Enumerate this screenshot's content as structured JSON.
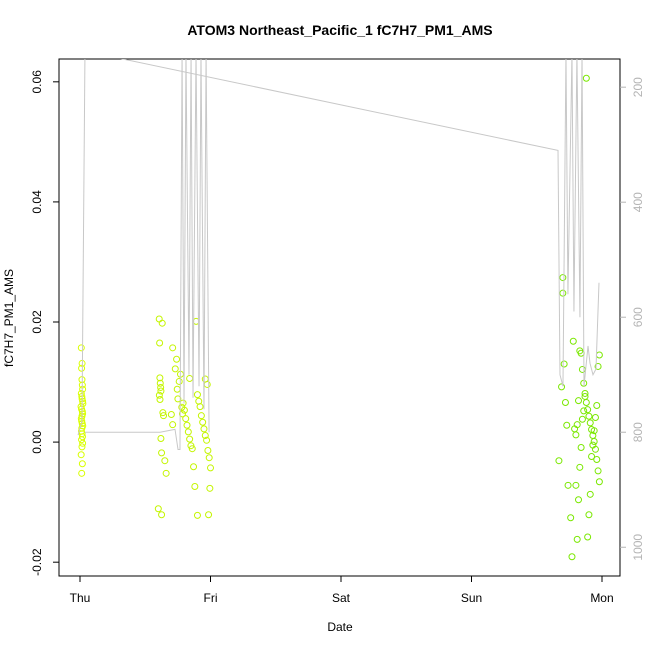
{
  "chart_data": {
    "type": "scatter",
    "title": "ATOM3 Northeast_Pacific_1 fC7H7_PM1_AMS",
    "xlabel": "Date",
    "ylabel": "fC7H7_PM1_AMS",
    "xlim": [
      -0.161,
      4.138
    ],
    "xticks": [
      {
        "value": 0,
        "label": "Thu"
      },
      {
        "value": 1,
        "label": "Fri"
      },
      {
        "value": 2,
        "label": "Sat"
      },
      {
        "value": 3,
        "label": "Sun"
      },
      {
        "value": 4,
        "label": "Mon"
      }
    ],
    "ylim": [
      -0.0223,
      0.0638
    ],
    "yticks": [
      {
        "value": -0.02,
        "label": "-0.02"
      },
      {
        "value": 0,
        "label": "0.00"
      },
      {
        "value": 0.02,
        "label": "0.02"
      },
      {
        "value": 0.04,
        "label": "0.04"
      },
      {
        "value": 0.06,
        "label": "0.06"
      }
    ],
    "y2lim": [
      1050,
      151
    ],
    "y2ticks": [
      200,
      400,
      600,
      800,
      1000
    ],
    "y2color": "#b4b4b4",
    "series": [
      {
        "color": "#d9ff00",
        "x": [
          0.01,
          0.012,
          0.015,
          0.018,
          0.02,
          0.01,
          0.014,
          0.016,
          0.02,
          0.022,
          0.008,
          0.012,
          0.018,
          0.02,
          0.015,
          0.01,
          0.013,
          0.017,
          0.021,
          0.014,
          0.011,
          0.016,
          0.019,
          0.012,
          0.02,
          0.015,
          0.009,
          0.018,
          0.013,
          0.016
        ],
        "values": [
          0.0157,
          0.0123,
          0.0104,
          0.0095,
          0.0088,
          0.0081,
          0.0076,
          0.0072,
          0.0068,
          0.0064,
          0.0059,
          0.0055,
          0.0051,
          0.0047,
          0.0043,
          0.0039,
          0.0035,
          0.0031,
          0.0027,
          0.0023,
          0.0018,
          0.0014,
          0.0009,
          0.0004,
          -0.0002,
          -0.0008,
          -0.0021,
          -0.0036,
          -0.0052,
          0.0131
        ]
      },
      {
        "color": "#c4f500",
        "x": [
          0.607,
          0.61,
          0.612,
          0.615,
          0.618,
          0.62,
          0.608,
          0.613,
          0.63,
          0.635,
          0.64,
          0.62,
          0.625,
          0.65,
          0.66,
          0.7,
          0.71,
          0.73,
          0.74,
          0.745,
          0.75,
          0.76,
          0.77,
          0.78,
          0.785,
          0.79,
          0.8,
          0.81,
          0.82,
          0.83,
          0.84,
          0.85,
          0.86,
          0.87,
          0.88,
          0.89,
          0.9,
          0.91,
          0.92,
          0.93,
          0.94,
          0.95,
          0.96,
          0.97,
          0.98,
          0.99,
          1.0,
          0.995,
          0.985,
          0.975,
          0.6,
          0.625,
          0.71,
          0.84,
          0.9,
          0.96
        ],
        "values": [
          0.0205,
          0.0165,
          0.0107,
          0.0098,
          0.0091,
          0.0085,
          0.0078,
          0.0071,
          0.0198,
          0.0049,
          0.0044,
          0.0006,
          -0.0018,
          -0.0031,
          -0.0052,
          0.0046,
          0.0157,
          0.0122,
          0.0138,
          0.0088,
          0.0072,
          0.0101,
          0.0113,
          0.0058,
          0.0047,
          0.0065,
          0.0053,
          0.0039,
          0.0028,
          0.0017,
          0.0005,
          -0.0006,
          -0.0011,
          -0.0041,
          -0.0074,
          0.0201,
          0.0079,
          0.0068,
          0.0059,
          0.0044,
          0.0033,
          0.0022,
          0.0011,
          0.0003,
          -0.0014,
          -0.0026,
          -0.0043,
          -0.0077,
          -0.0121,
          0.0096,
          -0.0111,
          -0.0121,
          0.0029,
          0.0106,
          -0.0122,
          0.0105
        ]
      },
      {
        "color": "#7ae800",
        "x": [
          3.67,
          3.69,
          3.7,
          3.7,
          3.71,
          3.72,
          3.73,
          3.74,
          3.76,
          3.77,
          3.78,
          3.79,
          3.8,
          3.81,
          3.82,
          3.83,
          3.84,
          3.85,
          3.86,
          3.87,
          3.88,
          3.89,
          3.9,
          3.91,
          3.92,
          3.93,
          3.94,
          3.95,
          3.96,
          3.97,
          3.98,
          3.98,
          3.97,
          3.96,
          3.95,
          3.94,
          3.93,
          3.92,
          3.91,
          3.9,
          3.89,
          3.88,
          3.87,
          3.86,
          3.85,
          3.84,
          3.83,
          3.82,
          3.81,
          3.8
        ],
        "values": [
          -0.0031,
          0.0092,
          0.0274,
          0.0248,
          0.013,
          0.0066,
          0.0028,
          -0.0072,
          -0.0126,
          -0.0191,
          0.0168,
          0.0022,
          -0.0072,
          -0.0162,
          0.0069,
          0.0152,
          0.0148,
          0.0121,
          0.0098,
          0.0081,
          0.0066,
          0.0054,
          0.0043,
          0.0032,
          0.0021,
          0.0011,
          0.0001,
          -0.0012,
          -0.0029,
          -0.0048,
          -0.0066,
          0.0145,
          0.0126,
          0.0061,
          0.0041,
          0.0019,
          -0.0005,
          -0.0024,
          -0.0087,
          -0.0121,
          -0.0158,
          0.0606,
          0.0076,
          0.0052,
          0.0038,
          -0.0009,
          -0.0042,
          -0.0096,
          0.0029,
          0.0012
        ]
      },
      {
        "color": "#c8c8c8",
        "axis": "y2",
        "x": [
          -0.015,
          0.015,
          0.038,
          0.307,
          3.663,
          3.678,
          3.701,
          3.724,
          3.739,
          3.77,
          3.785,
          3.808,
          3.831,
          3.847,
          3.862,
          3.893,
          3.908,
          3.931,
          3.954,
          3.977,
          null,
          0.038,
          0.613,
          0.728,
          0.751,
          0.766,
          0.782,
          0.797,
          0.812,
          0.835,
          0.851,
          0.866,
          0.889,
          0.912,
          0.927,
          0.95,
          0.966,
          0.989
        ],
        "values": [
          805,
          780,
          140,
          150,
          310,
          700,
          720,
          140,
          560,
          140,
          590,
          140,
          600,
          140,
          720,
          650,
          680,
          700,
          690,
          540,
          null,
          800,
          800,
          795,
          830,
          830,
          140,
          750,
          140,
          700,
          140,
          740,
          140,
          720,
          140,
          760,
          140,
          800
        ]
      }
    ]
  }
}
